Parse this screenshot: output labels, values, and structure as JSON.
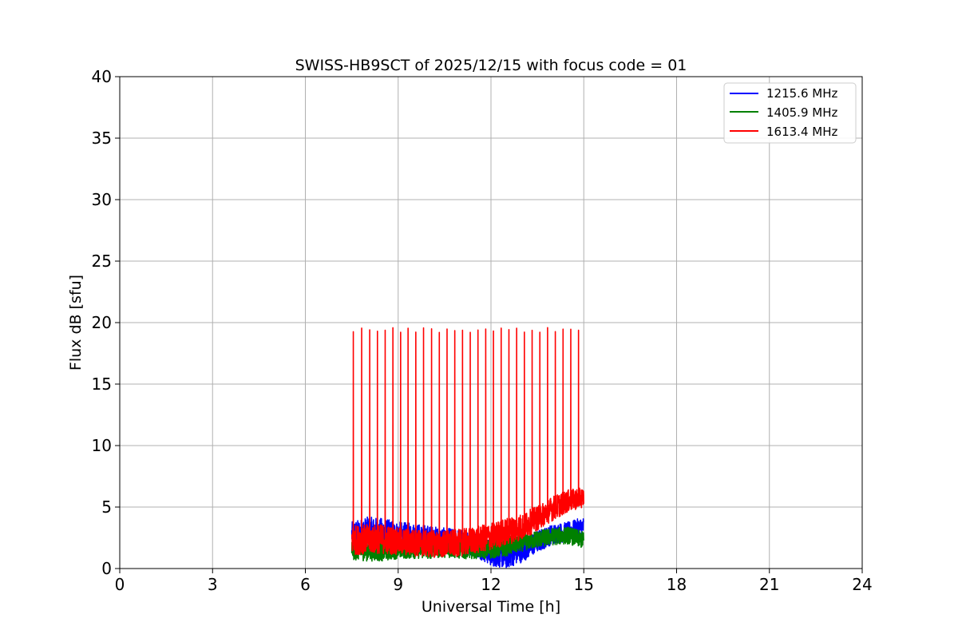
{
  "chart_data": {
    "type": "line",
    "title": "SWISS-HB9SCT of 2025/12/15 with focus code = 01",
    "xlabel": "Universal Time [h]",
    "ylabel": "Flux dB [sfu]",
    "xlim": [
      0,
      24
    ],
    "ylim": [
      0,
      40
    ],
    "xticks": [
      0,
      3,
      6,
      9,
      12,
      15,
      18,
      21,
      24
    ],
    "yticks": [
      0,
      5,
      10,
      15,
      20,
      25,
      30,
      35,
      40
    ],
    "grid": true,
    "legend_position": "top-right",
    "x_start": 7.5,
    "x_end": 15.0,
    "series": [
      {
        "name": "1215.6 MHz",
        "color": "#0000ff",
        "x": [
          7.5,
          8.0,
          8.5,
          9.0,
          9.5,
          10.0,
          10.5,
          11.0,
          11.5,
          12.0,
          12.5,
          13.0,
          13.5,
          14.0,
          14.5,
          15.0
        ],
        "y": [
          2.8,
          3.0,
          2.9,
          2.7,
          2.6,
          2.5,
          2.3,
          2.2,
          2.0,
          1.2,
          1.0,
          1.5,
          2.2,
          2.8,
          3.0,
          3.4
        ],
        "spread": [
          1.0,
          1.2,
          1.2,
          1.1,
          1.1,
          1.0,
          1.0,
          1.0,
          1.0,
          1.0,
          1.0,
          1.0,
          0.9,
          0.8,
          0.8,
          0.8
        ]
      },
      {
        "name": "1405.9 MHz",
        "color": "#008000",
        "x": [
          7.5,
          8.0,
          8.5,
          9.0,
          9.5,
          10.0,
          10.5,
          11.0,
          11.5,
          12.0,
          12.5,
          13.0,
          13.5,
          14.0,
          14.5,
          15.0
        ],
        "y": [
          1.6,
          1.5,
          1.5,
          1.6,
          1.6,
          1.6,
          1.7,
          1.6,
          1.6,
          1.6,
          1.8,
          2.1,
          2.4,
          2.6,
          2.7,
          2.3
        ],
        "spread": [
          0.9,
          0.9,
          0.9,
          0.8,
          0.8,
          0.8,
          0.8,
          0.8,
          0.8,
          0.8,
          0.8,
          0.7,
          0.7,
          0.7,
          0.7,
          0.7
        ]
      },
      {
        "name": "1613.4 MHz",
        "color": "#ff0000",
        "x": [
          7.5,
          8.0,
          8.5,
          9.0,
          9.5,
          10.0,
          10.5,
          11.0,
          11.5,
          12.0,
          12.5,
          13.0,
          13.5,
          14.0,
          14.5,
          15.0
        ],
        "y": [
          2.3,
          2.4,
          2.4,
          2.2,
          2.1,
          2.0,
          2.0,
          2.1,
          2.3,
          2.6,
          3.0,
          3.4,
          4.1,
          4.9,
          5.5,
          5.8
        ],
        "spread": [
          1.2,
          1.2,
          1.2,
          1.1,
          1.1,
          1.1,
          1.1,
          1.1,
          1.1,
          1.1,
          1.1,
          1.1,
          1.0,
          1.0,
          0.9,
          0.8
        ],
        "spikes": {
          "times": [
            7.55,
            7.82,
            8.08,
            8.33,
            8.58,
            8.83,
            9.08,
            9.32,
            9.57,
            9.82,
            10.08,
            10.33,
            10.58,
            10.83,
            11.08,
            11.33,
            11.58,
            11.83,
            12.08,
            12.33,
            12.58,
            12.83,
            13.08,
            13.33,
            13.58,
            13.83,
            14.08,
            14.33,
            14.58,
            14.83
          ],
          "peak": 19.4
        }
      }
    ]
  }
}
